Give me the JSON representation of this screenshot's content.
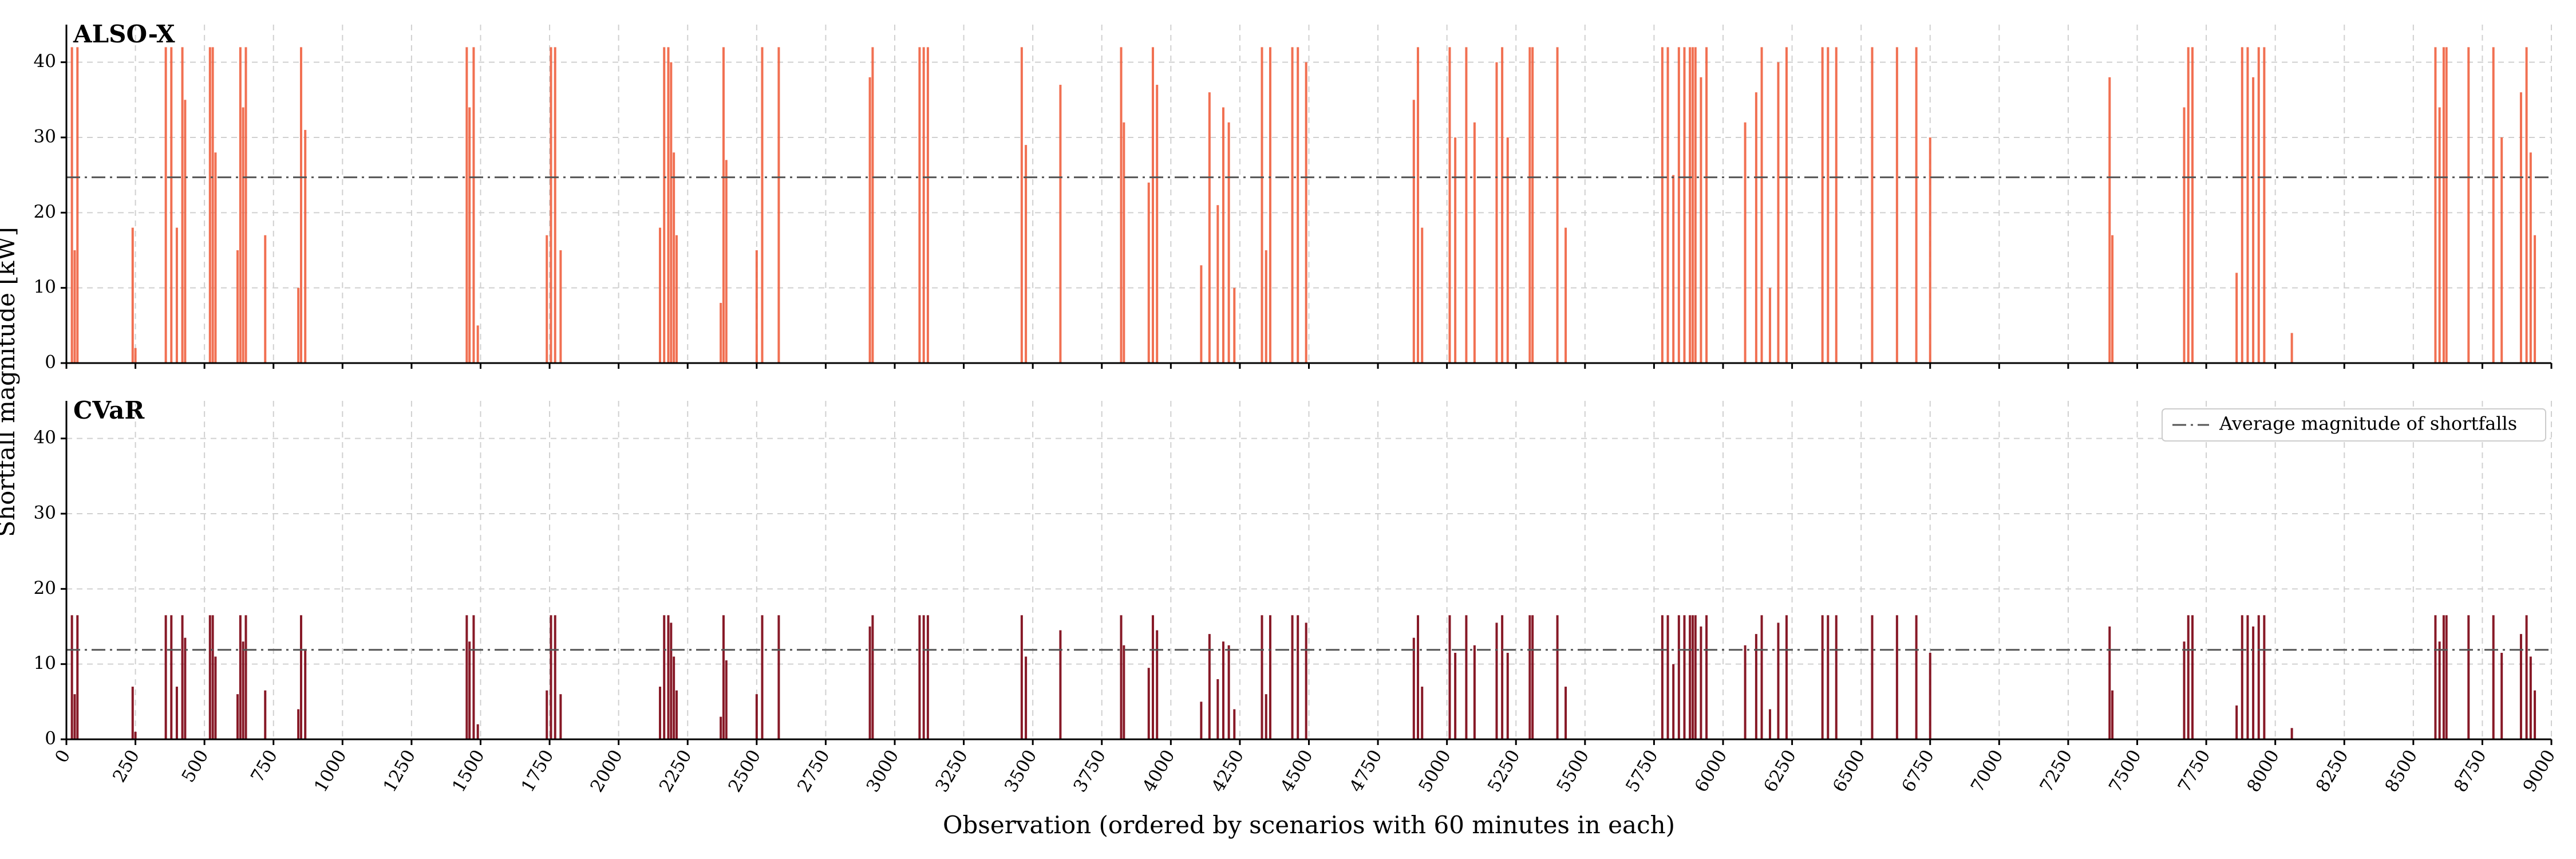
{
  "chart_data": [
    {
      "type": "bar",
      "title": "ALSO-X",
      "ylabel": "Shortfall magnitude [kW]",
      "color": "#f0603f",
      "x": [
        20,
        30,
        40,
        240,
        250,
        360,
        380,
        400,
        420,
        430,
        520,
        530,
        540,
        620,
        630,
        640,
        650,
        720,
        840,
        850,
        865,
        1450,
        1460,
        1475,
        1490,
        1740,
        1755,
        1770,
        1790,
        2150,
        2165,
        2180,
        2190,
        2200,
        2210,
        2370,
        2380,
        2390,
        2500,
        2520,
        2580,
        2910,
        2920,
        3090,
        3105,
        3120,
        3460,
        3475,
        3600,
        3820,
        3830,
        3920,
        3935,
        3950,
        4110,
        4140,
        4170,
        4190,
        4210,
        4230,
        4330,
        4345,
        4360,
        4440,
        4460,
        4490,
        4880,
        4895,
        4910,
        5010,
        5030,
        5070,
        5100,
        5180,
        5200,
        5220,
        5300,
        5310,
        5400,
        5430,
        5780,
        5800,
        5820,
        5840,
        5860,
        5880,
        5890,
        5900,
        5920,
        5940,
        6080,
        6120,
        6140,
        6170,
        6200,
        6230,
        6360,
        6380,
        6410,
        6540,
        6630,
        6700,
        6750,
        7400,
        7410,
        7670,
        7685,
        7700,
        7860,
        7880,
        7900,
        7920,
        7940,
        7960,
        8060,
        8580,
        8595,
        8610,
        8620,
        8700,
        8790,
        8820,
        8890,
        8910,
        8925,
        8940
      ],
      "values": [
        42,
        15,
        42,
        18,
        2,
        42,
        42,
        18,
        42,
        35,
        42,
        42,
        28,
        15,
        42,
        34,
        42,
        17,
        10,
        42,
        31,
        42,
        34,
        42,
        5,
        17,
        42,
        42,
        15,
        18,
        42,
        42,
        40,
        28,
        17,
        8,
        42,
        27,
        15,
        42,
        42,
        38,
        42,
        42,
        42,
        42,
        42,
        29,
        37,
        42,
        32,
        24,
        42,
        37,
        13,
        36,
        21,
        34,
        32,
        10,
        42,
        15,
        42,
        42,
        42,
        40,
        35,
        42,
        18,
        42,
        30,
        42,
        32,
        40,
        42,
        30,
        42,
        42,
        42,
        18,
        42,
        42,
        25,
        42,
        42,
        42,
        42,
        42,
        38,
        42,
        32,
        36,
        42,
        10,
        40,
        42,
        42,
        42,
        42,
        42,
        42,
        42,
        30,
        38,
        17,
        34,
        42,
        42,
        12,
        42,
        42,
        38,
        42,
        42,
        4,
        42,
        34,
        42,
        42,
        42,
        42,
        30,
        36,
        42,
        28,
        17
      ],
      "hline": {
        "value": 24.7,
        "color": "#555555"
      },
      "xlim": [
        0,
        9000
      ],
      "ylim": [
        0,
        45
      ],
      "xticks": [
        0,
        250,
        500,
        750,
        1000,
        1250,
        1500,
        1750,
        2000,
        2250,
        2500,
        2750,
        3000,
        3250,
        3500,
        3750,
        4000,
        4250,
        4500,
        4750,
        5000,
        5250,
        5500,
        5750,
        6000,
        6250,
        6500,
        6750,
        7000,
        7250,
        7500,
        7750,
        8000,
        8250,
        8500,
        8750,
        9000
      ],
      "yticks": [
        0,
        10,
        20,
        30,
        40
      ],
      "grid": true
    },
    {
      "type": "bar",
      "title": "CVaR",
      "xlabel": "Observation (ordered by scenarios with 60 minutes in each)",
      "color": "#7a0010",
      "x": [
        20,
        30,
        40,
        240,
        250,
        360,
        380,
        400,
        420,
        430,
        520,
        530,
        540,
        620,
        630,
        640,
        650,
        720,
        840,
        850,
        865,
        1450,
        1460,
        1475,
        1490,
        1740,
        1755,
        1770,
        1790,
        2150,
        2165,
        2180,
        2190,
        2200,
        2210,
        2370,
        2380,
        2390,
        2500,
        2520,
        2580,
        2910,
        2920,
        3090,
        3105,
        3120,
        3460,
        3475,
        3600,
        3820,
        3830,
        3920,
        3935,
        3950,
        4110,
        4140,
        4170,
        4190,
        4210,
        4230,
        4330,
        4345,
        4360,
        4440,
        4460,
        4490,
        4880,
        4895,
        4910,
        5010,
        5030,
        5070,
        5100,
        5180,
        5200,
        5220,
        5300,
        5310,
        5400,
        5430,
        5780,
        5800,
        5820,
        5840,
        5860,
        5880,
        5890,
        5900,
        5920,
        5940,
        6080,
        6120,
        6140,
        6170,
        6200,
        6230,
        6360,
        6380,
        6410,
        6540,
        6630,
        6700,
        6750,
        7400,
        7410,
        7670,
        7685,
        7700,
        7860,
        7880,
        7900,
        7920,
        7940,
        7960,
        8060,
        8580,
        8595,
        8610,
        8620,
        8700,
        8790,
        8820,
        8890,
        8910,
        8925,
        8940
      ],
      "values": [
        16.5,
        6,
        16.5,
        7,
        1,
        16.5,
        16.5,
        7,
        16.5,
        13.5,
        16.5,
        16.5,
        11,
        6,
        16.5,
        13,
        16.5,
        6.5,
        4,
        16.5,
        12,
        16.5,
        13,
        16.5,
        2,
        6.5,
        16.5,
        16.5,
        6,
        7,
        16.5,
        16.5,
        15.5,
        11,
        6.5,
        3,
        16.5,
        10.5,
        6,
        16.5,
        16.5,
        15,
        16.5,
        16.5,
        16.5,
        16.5,
        16.5,
        11,
        14.5,
        16.5,
        12.5,
        9.5,
        16.5,
        14.5,
        5,
        14,
        8,
        13,
        12.5,
        4,
        16.5,
        6,
        16.5,
        16.5,
        16.5,
        15.5,
        13.5,
        16.5,
        7,
        16.5,
        11.5,
        16.5,
        12.5,
        15.5,
        16.5,
        11.5,
        16.5,
        16.5,
        16.5,
        7,
        16.5,
        16.5,
        10,
        16.5,
        16.5,
        16.5,
        16.5,
        16.5,
        15,
        16.5,
        12.5,
        14,
        16.5,
        4,
        15.5,
        16.5,
        16.5,
        16.5,
        16.5,
        16.5,
        16.5,
        16.5,
        11.5,
        15,
        6.5,
        13,
        16.5,
        16.5,
        4.5,
        16.5,
        16.5,
        15,
        16.5,
        16.5,
        1.5,
        16.5,
        13,
        16.5,
        16.5,
        16.5,
        16.5,
        11.5,
        14,
        16.5,
        11,
        6.5
      ],
      "hline": {
        "value": 11.9,
        "name": "Average magnitude of shortfalls",
        "color": "#555555"
      },
      "xlim": [
        0,
        9000
      ],
      "ylim": [
        0,
        45
      ],
      "xticks": [
        0,
        250,
        500,
        750,
        1000,
        1250,
        1500,
        1750,
        2000,
        2250,
        2500,
        2750,
        3000,
        3250,
        3500,
        3750,
        4000,
        4250,
        4500,
        4750,
        5000,
        5250,
        5500,
        5750,
        6000,
        6250,
        6500,
        6750,
        7000,
        7250,
        7500,
        7750,
        8000,
        8250,
        8500,
        8750,
        9000
      ],
      "yticks": [
        0,
        10,
        20,
        30,
        40
      ],
      "grid": true,
      "legend": "upper right"
    }
  ]
}
